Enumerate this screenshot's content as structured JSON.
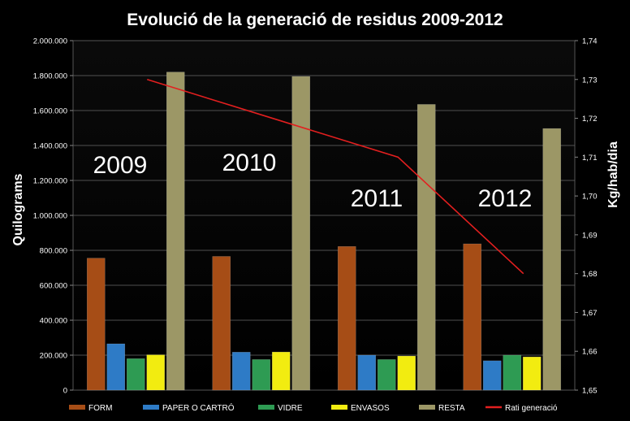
{
  "chart_data": {
    "type": "bar",
    "title": "Evolució de la generació de residus 2009-2012",
    "ylabel": "Quilograms",
    "y2label": "Kg/hab/dia",
    "categories": [
      "2009",
      "2010",
      "2011",
      "2012"
    ],
    "ylim": [
      0,
      2000000
    ],
    "y2lim": [
      1.65,
      1.74
    ],
    "yticks": [
      "0",
      "200.000",
      "400.000",
      "600.000",
      "800.000",
      "1.000.000",
      "1.200.000",
      "1.400.000",
      "1.600.000",
      "1.800.000",
      "2.000.000"
    ],
    "y2ticks": [
      "1,65",
      "1,66",
      "1,67",
      "1,68",
      "1,69",
      "1,70",
      "1,71",
      "1,72",
      "1,73",
      "1,74"
    ],
    "series": [
      {
        "name": "FORM",
        "color": "#a64d16",
        "values": [
          755000,
          765000,
          822000,
          837000
        ]
      },
      {
        "name": "PAPER O CARTRÓ",
        "color": "#2e7bc6",
        "values": [
          265000,
          217000,
          200000,
          168000
        ]
      },
      {
        "name": "VIDRE",
        "color": "#2e9b53",
        "values": [
          180000,
          175000,
          175000,
          200000
        ]
      },
      {
        "name": "ENVASOS",
        "color": "#f2ec10",
        "values": [
          202000,
          218000,
          195000,
          190000
        ]
      },
      {
        "name": "RESTA",
        "color": "#9c9766",
        "values": [
          1820000,
          1795000,
          1635000,
          1497000
        ]
      }
    ],
    "line_series": {
      "name": "Rati generació",
      "color": "#e21f1f",
      "values": [
        1.73,
        1.72,
        1.71,
        1.68
      ],
      "axis": "right"
    },
    "grid": true,
    "legend": "bottom"
  }
}
